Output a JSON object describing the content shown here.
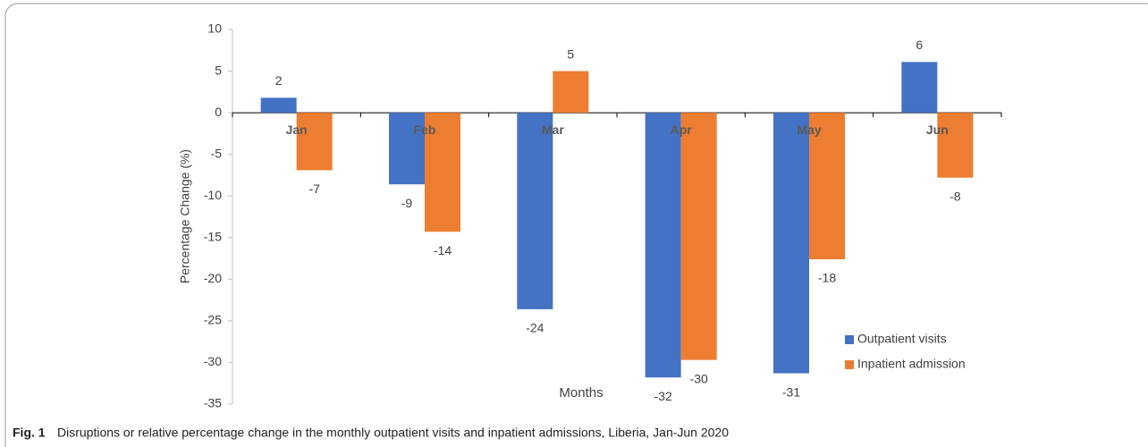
{
  "chart_data": {
    "type": "bar",
    "y_label": "Percentage Change (%)",
    "x_label": "Months",
    "categories": [
      "Jan",
      "Feb",
      "Mar",
      "Apr",
      "May",
      "Jun"
    ],
    "series": [
      {
        "name": "Outpatient visits",
        "color": "#4472c4",
        "values": [
          1.8,
          -8.6,
          -23.6,
          -31.8,
          -31.3,
          6.1
        ],
        "value_labels": [
          "2",
          "-9",
          "-24",
          "-32",
          "-31",
          "6"
        ]
      },
      {
        "name": "Inpatient admission",
        "color": "#ed7d31",
        "values": [
          -6.9,
          -14.3,
          5,
          -29.7,
          -17.6,
          -7.8
        ],
        "value_labels": [
          "-7",
          "-14",
          "5",
          "-30",
          "-18",
          "-8"
        ]
      }
    ],
    "ylim": [
      -35,
      10
    ],
    "yticks": [
      -35,
      -30,
      -25,
      -20,
      -15,
      -10,
      -5,
      0,
      5,
      10
    ],
    "legend": "lower right"
  },
  "caption": {
    "label": "Fig. 1",
    "text": "Disruptions or relative percentage change in the monthly outpatient visits and inpatient admissions, Liberia, Jan-Jun 2020"
  }
}
